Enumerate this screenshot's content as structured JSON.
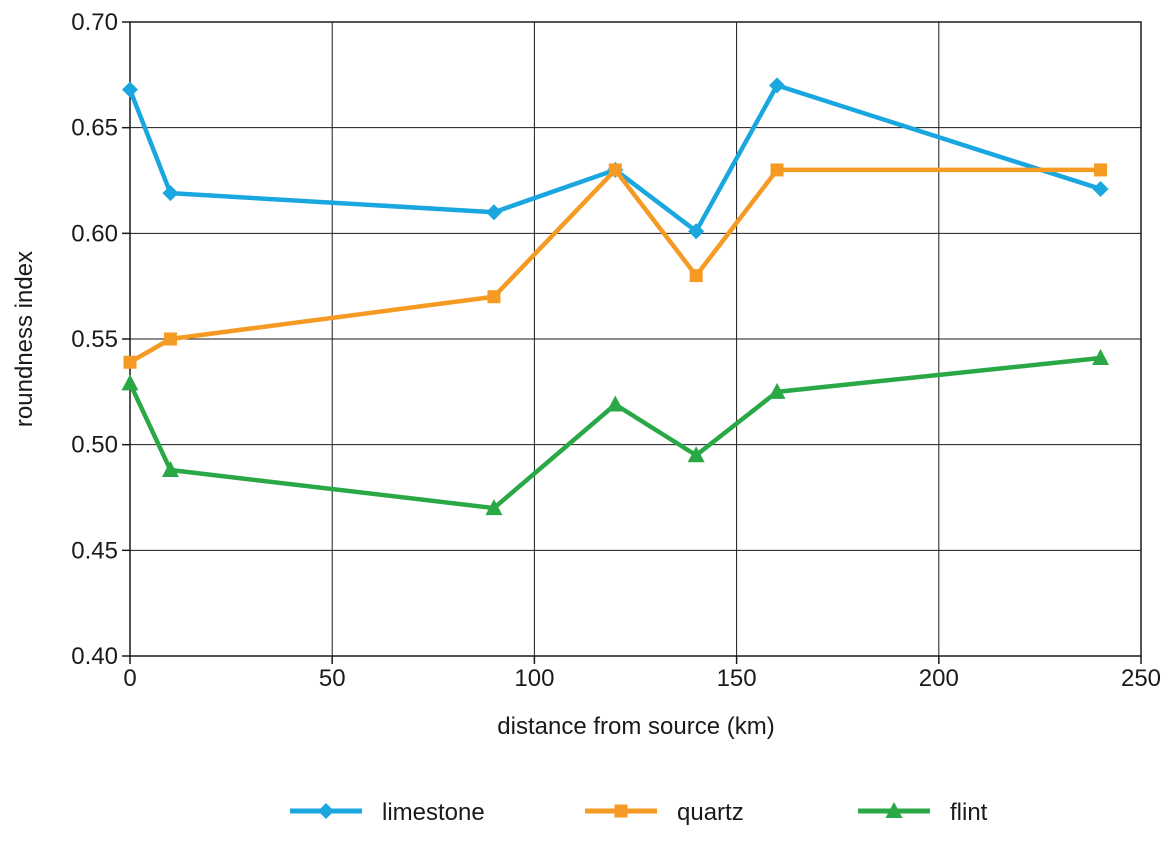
{
  "chart_data": {
    "type": "line",
    "title": "",
    "xlabel": "distance from source (km)",
    "ylabel": "roundness index",
    "xlim": [
      0,
      250
    ],
    "ylim": [
      0.4,
      0.7
    ],
    "x_ticks": [
      "0",
      "50",
      "100",
      "150",
      "200",
      "250"
    ],
    "y_ticks": [
      "0.40",
      "0.45",
      "0.50",
      "0.55",
      "0.60",
      "0.65",
      "0.70"
    ],
    "grid": true,
    "legend_position": "bottom",
    "x": [
      0,
      10,
      90,
      120,
      140,
      160,
      240
    ],
    "series": [
      {
        "name": "limestone",
        "color": "#1aa7e0",
        "marker": "diamond",
        "values": [
          0.668,
          0.619,
          0.61,
          0.63,
          0.601,
          0.67,
          0.621
        ]
      },
      {
        "name": "quartz",
        "color": "#f59a23",
        "marker": "square",
        "values": [
          0.539,
          0.55,
          0.57,
          0.63,
          0.58,
          0.63,
          0.63
        ]
      },
      {
        "name": "flint",
        "color": "#2aa846",
        "marker": "triangle",
        "values": [
          0.529,
          0.488,
          0.47,
          0.519,
          0.495,
          0.525,
          0.541
        ]
      }
    ]
  }
}
